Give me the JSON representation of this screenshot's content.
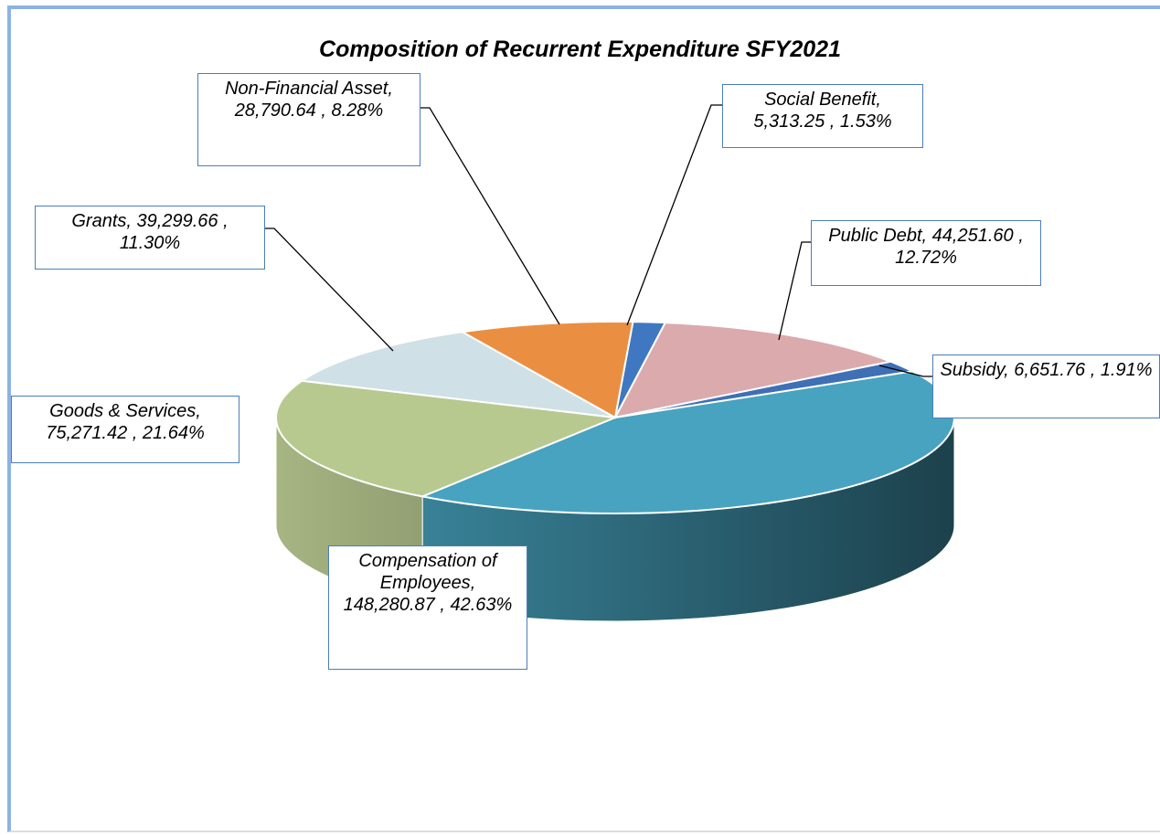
{
  "chart_data": {
    "type": "pie3d",
    "title": "Composition of Recurrent Expenditure SFY2021",
    "categories": [
      "Social Benefit",
      "Public Debt",
      "Subsidy",
      "Compensation of Employees",
      "Goods & Services",
      "Grants",
      "Non-Financial Asset"
    ],
    "values": [
      5313.25,
      44251.6,
      6651.76,
      148280.87,
      75271.42,
      39299.66,
      28790.64
    ],
    "value_labels": [
      "5,313.25",
      "44,251.60",
      "6,651.76",
      "148,280.87",
      "75,271.42",
      "39,299.66",
      "28,790.64"
    ],
    "percent_labels": [
      "1.53%",
      "12.72%",
      "1.91%",
      "42.63%",
      "21.64%",
      "11.30%",
      "8.28%"
    ],
    "label_separator": ",",
    "colors": [
      "#3f78c0",
      "#dbaaad",
      "#3f6fb5",
      "#47a3bf",
      "#b8c990",
      "#cfe0e6",
      "#ea8f42"
    ]
  }
}
